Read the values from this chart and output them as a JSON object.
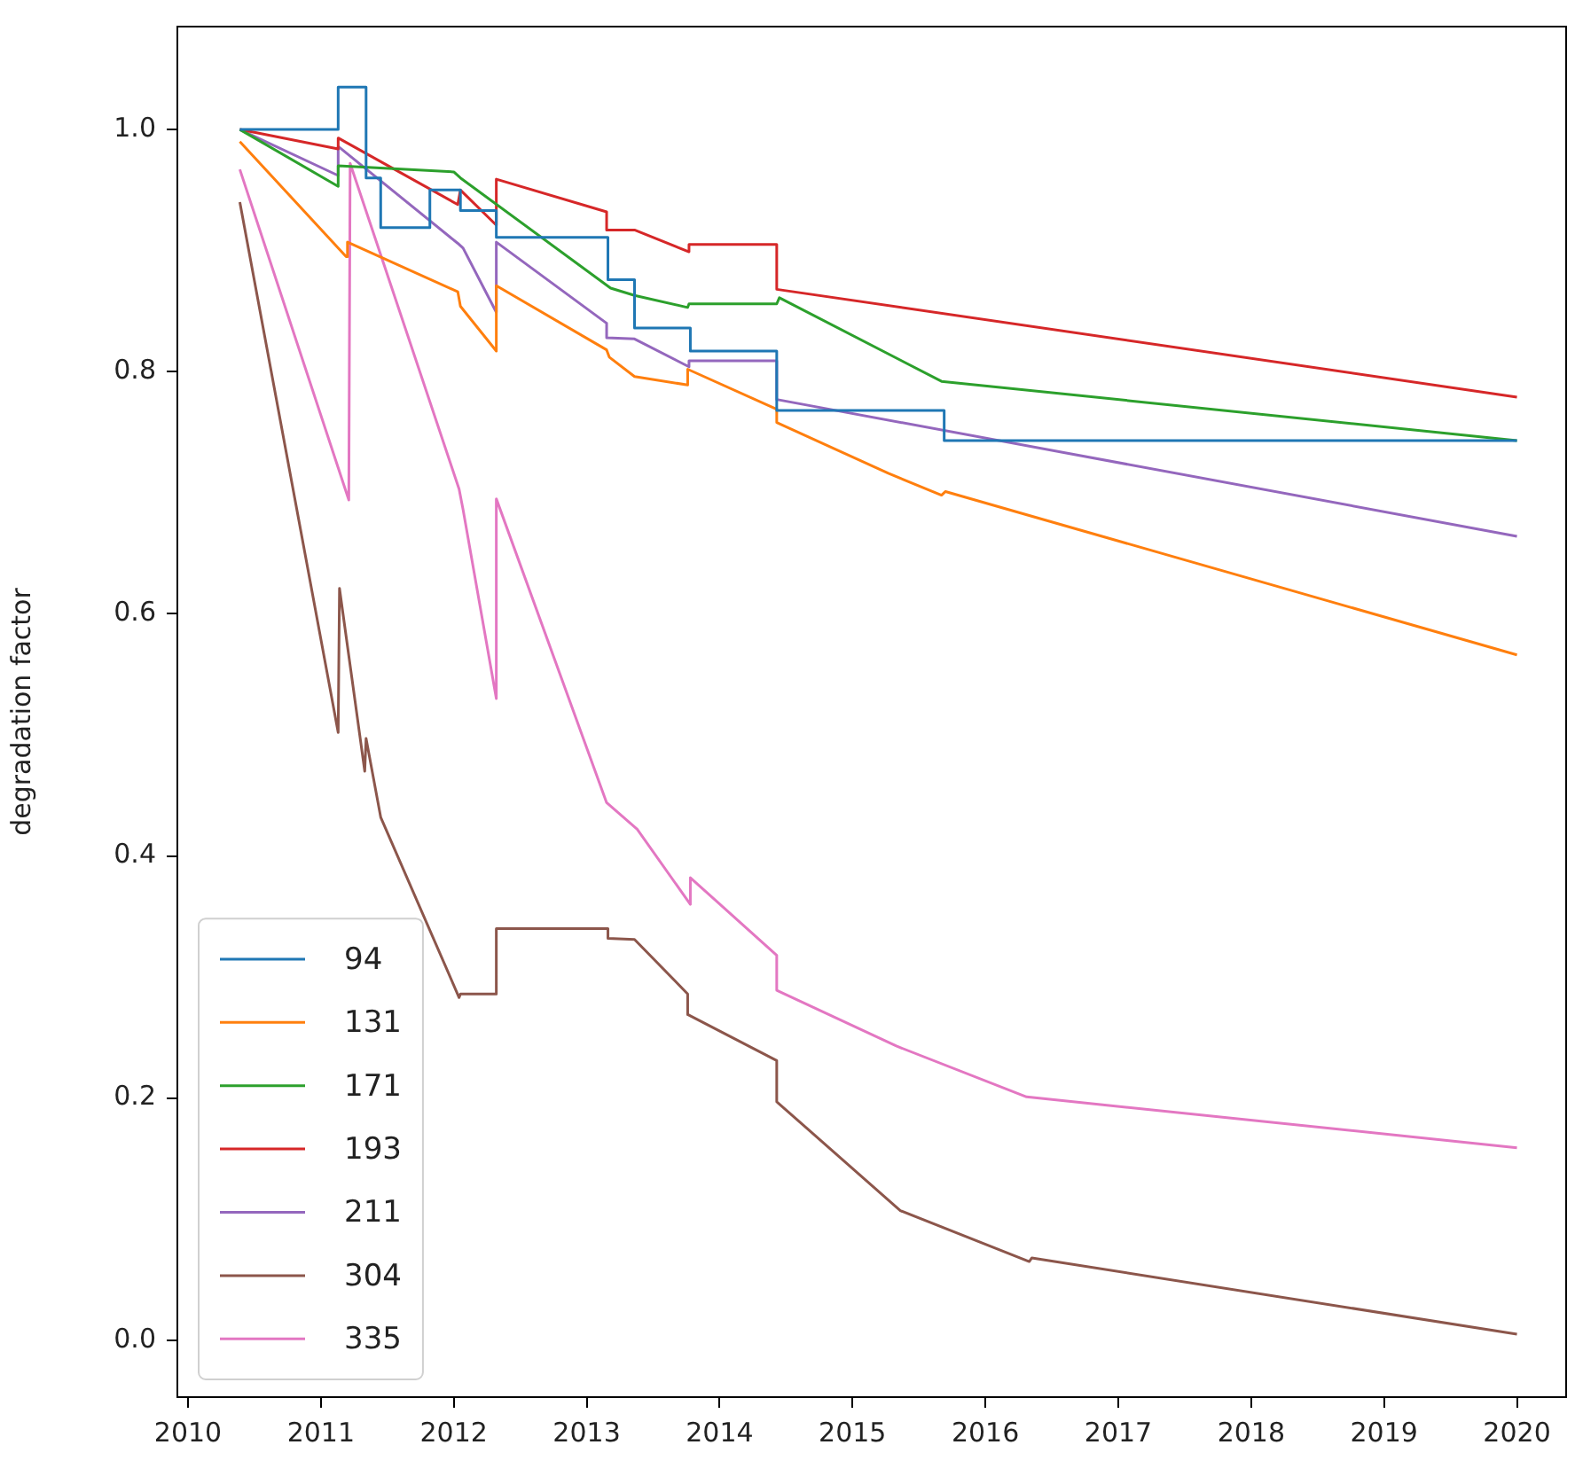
{
  "chart_data": {
    "type": "line",
    "ylabel": "degradation factor",
    "xlim": [
      2009.92,
      2020.37
    ],
    "ylim": [
      -0.047,
      1.085
    ],
    "xticks": [
      2010,
      2011,
      2012,
      2013,
      2014,
      2015,
      2016,
      2017,
      2018,
      2019,
      2020
    ],
    "yticks": [
      {
        "value": 0,
        "label": "0.0"
      },
      0.2,
      0.4,
      0.6,
      0.8,
      {
        "value": 1,
        "label": "1.0"
      }
    ],
    "legend": "bottom left",
    "series": [
      {
        "name": "94",
        "color": "#1f77b4",
        "x": [
          2010.39,
          2011.13,
          2011.13,
          2011.34,
          2011.34,
          2011.45,
          2011.45,
          2011.82,
          2011.82,
          2012.05,
          2012.05,
          2012.32,
          2012.32,
          2013.16,
          2013.16,
          2013.36,
          2013.36,
          2013.78,
          2013.78,
          2014.43,
          2014.43,
          2015.69,
          2015.69,
          2020.0
        ],
        "values": [
          1.0,
          1.0,
          1.035,
          1.035,
          0.96,
          0.96,
          0.919,
          0.919,
          0.95,
          0.95,
          0.933,
          0.933,
          0.911,
          0.911,
          0.876,
          0.876,
          0.836,
          0.836,
          0.817,
          0.817,
          0.768,
          0.768,
          0.743,
          0.743
        ]
      },
      {
        "name": "131",
        "color": "#ff7f0e",
        "x": [
          2010.39,
          2011.19,
          2011.2,
          2012.03,
          2012.05,
          2012.32,
          2012.32,
          2013.15,
          2013.17,
          2013.36,
          2013.76,
          2013.76,
          2014.43,
          2014.43,
          2015.27,
          2015.67,
          2015.7,
          2020.0
        ],
        "values": [
          0.99,
          0.895,
          0.907,
          0.866,
          0.854,
          0.817,
          0.871,
          0.818,
          0.812,
          0.796,
          0.789,
          0.802,
          0.769,
          0.758,
          0.716,
          0.698,
          0.701,
          0.566
        ]
      },
      {
        "name": "171",
        "color": "#2ca02c",
        "x": [
          2010.39,
          2011.13,
          2011.13,
          2012.0,
          2012.05,
          2013.18,
          2013.36,
          2013.76,
          2013.77,
          2014.43,
          2014.45,
          2015.67,
          2020.0
        ],
        "values": [
          1.0,
          0.953,
          0.97,
          0.965,
          0.96,
          0.869,
          0.863,
          0.853,
          0.856,
          0.856,
          0.861,
          0.792,
          0.743
        ]
      },
      {
        "name": "193",
        "color": "#d62728",
        "x": [
          2010.39,
          2011.13,
          2011.13,
          2012.03,
          2012.05,
          2012.32,
          2012.32,
          2013.15,
          2013.15,
          2013.36,
          2013.77,
          2013.77,
          2014.43,
          2014.43,
          2020.0
        ],
        "values": [
          1.0,
          0.984,
          0.993,
          0.938,
          0.95,
          0.921,
          0.959,
          0.932,
          0.917,
          0.917,
          0.899,
          0.905,
          0.905,
          0.868,
          0.779
        ]
      },
      {
        "name": "211",
        "color": "#9467bd",
        "x": [
          2010.39,
          2011.13,
          2011.13,
          2012.03,
          2012.07,
          2012.32,
          2012.32,
          2013.15,
          2013.15,
          2013.36,
          2013.77,
          2013.77,
          2014.43,
          2014.43,
          2020.0
        ],
        "values": [
          1.0,
          0.962,
          0.986,
          0.906,
          0.902,
          0.849,
          0.907,
          0.84,
          0.828,
          0.827,
          0.804,
          0.809,
          0.809,
          0.777,
          0.664
        ]
      },
      {
        "name": "304",
        "color": "#8c564b",
        "x": [
          2010.39,
          2011.13,
          2011.14,
          2011.33,
          2011.34,
          2011.45,
          2012.04,
          2012.05,
          2012.32,
          2012.32,
          2013.16,
          2013.16,
          2013.36,
          2013.76,
          2013.76,
          2014.43,
          2014.43,
          2015.36,
          2016.33,
          2016.35,
          2020.0
        ],
        "values": [
          0.94,
          0.502,
          0.621,
          0.47,
          0.497,
          0.432,
          0.283,
          0.286,
          0.286,
          0.34,
          0.34,
          0.332,
          0.331,
          0.286,
          0.269,
          0.231,
          0.197,
          0.107,
          0.065,
          0.068,
          0.005
        ]
      },
      {
        "name": "335",
        "color": "#e377c2",
        "x": [
          2010.39,
          2011.21,
          2011.22,
          2012.04,
          2012.07,
          2012.32,
          2012.32,
          2013.15,
          2013.38,
          2013.78,
          2013.78,
          2014.43,
          2014.43,
          2015.33,
          2016.31,
          2020.0
        ],
        "values": [
          0.967,
          0.694,
          0.972,
          0.703,
          0.686,
          0.53,
          0.695,
          0.444,
          0.422,
          0.36,
          0.382,
          0.318,
          0.289,
          0.243,
          0.201,
          0.159
        ]
      }
    ]
  }
}
